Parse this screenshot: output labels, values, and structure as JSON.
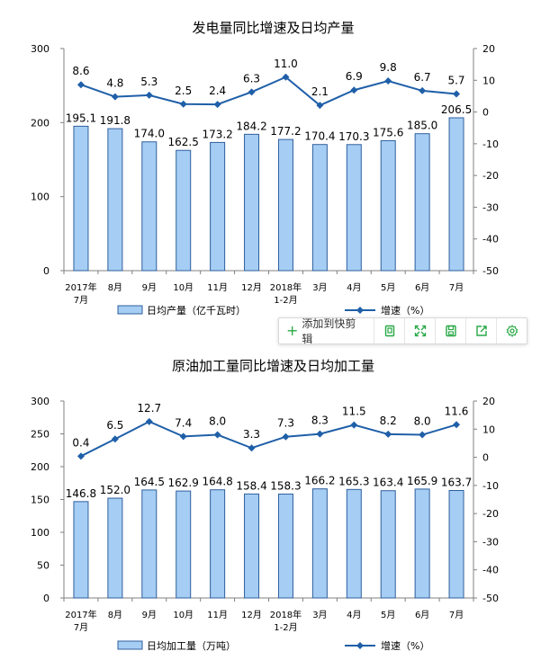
{
  "colors": {
    "bar_fill": "#a6cdf3",
    "bar_stroke": "#2e5f9e",
    "line": "#1f5fa8",
    "marker": "#1f5fa8",
    "axis": "#808080",
    "toolbar_icon": "#27a844"
  },
  "chart_data": [
    {
      "type": "bar",
      "title": "发电量同比增速及日均产量",
      "categories": [
        [
          "2017年",
          "7月"
        ],
        [
          "8月"
        ],
        [
          "9月"
        ],
        [
          "10月"
        ],
        [
          "11月"
        ],
        [
          "12月"
        ],
        [
          "2018年",
          "1-2月"
        ],
        [
          "3月"
        ],
        [
          "4月"
        ],
        [
          "5月"
        ],
        [
          "6月"
        ],
        [
          "7月"
        ]
      ],
      "left_axis": {
        "min": 0,
        "max": 300,
        "ticks": [
          0,
          100,
          200,
          300
        ]
      },
      "right_axis": {
        "min": -50,
        "max": 20,
        "ticks": [
          20,
          10,
          0,
          -10,
          -20,
          -30,
          -40,
          -50
        ]
      },
      "series": [
        {
          "name": "日均产量（亿千瓦时）",
          "type": "bar",
          "axis": "left",
          "values": [
            195.1,
            191.8,
            174.0,
            162.5,
            173.2,
            184.2,
            177.2,
            170.4,
            170.3,
            175.6,
            185.0,
            206.5
          ],
          "labels": [
            "195.1",
            "191.8",
            "174.0",
            "162.5",
            "173.2",
            "184.2",
            "177.2",
            "170.4",
            "170.3",
            "175.6",
            "185.0",
            "206.5"
          ]
        },
        {
          "name": "增速（%）",
          "type": "line",
          "axis": "right",
          "values": [
            8.6,
            4.8,
            5.3,
            2.5,
            2.4,
            6.3,
            11.0,
            2.1,
            6.9,
            9.8,
            6.7,
            5.7
          ],
          "labels": [
            "8.6",
            "4.8",
            "5.3",
            "2.5",
            "2.4",
            "6.3",
            "11.0",
            "2.1",
            "6.9",
            "9.8",
            "6.7",
            "5.7"
          ]
        }
      ]
    },
    {
      "type": "bar",
      "title": "原油加工量同比增速及日均加工量",
      "categories": [
        [
          "2017年",
          "7月"
        ],
        [
          "8月"
        ],
        [
          "9月"
        ],
        [
          "10月"
        ],
        [
          "11月"
        ],
        [
          "12月"
        ],
        [
          "2018年",
          "1-2月"
        ],
        [
          "3月"
        ],
        [
          "4月"
        ],
        [
          "5月"
        ],
        [
          "6月"
        ],
        [
          "7月"
        ]
      ],
      "left_axis": {
        "min": 0,
        "max": 300,
        "ticks": [
          0,
          50,
          100,
          150,
          200,
          250,
          300
        ]
      },
      "right_axis": {
        "min": -50,
        "max": 20,
        "ticks": [
          20,
          10,
          0,
          -10,
          -20,
          -30,
          -40,
          -50
        ]
      },
      "series": [
        {
          "name": "日均加工量（万吨）",
          "type": "bar",
          "axis": "left",
          "values": [
            146.8,
            152.0,
            164.5,
            162.9,
            164.8,
            158.4,
            158.3,
            166.2,
            165.3,
            163.4,
            165.9,
            163.7
          ],
          "labels": [
            "146.8",
            "152.0",
            "164.5",
            "162.9",
            "164.8",
            "158.4",
            "158.3",
            "166.2",
            "165.3",
            "163.4",
            "165.9",
            "163.7"
          ]
        },
        {
          "name": "增速（%）",
          "type": "line",
          "axis": "right",
          "values": [
            0.4,
            6.5,
            12.7,
            7.4,
            8.0,
            3.3,
            7.3,
            8.3,
            11.5,
            8.2,
            8.0,
            11.6
          ],
          "labels": [
            "0.4",
            "6.5",
            "12.7",
            "7.4",
            "8.0",
            "3.3",
            "7.3",
            "8.3",
            "11.5",
            "8.2",
            "8.0",
            "11.6"
          ]
        }
      ]
    }
  ],
  "toolbar": {
    "add_label": "添加到快剪辑",
    "icons": [
      "copy-icon",
      "expand-icon",
      "save-icon",
      "share-icon",
      "settings-icon"
    ]
  }
}
